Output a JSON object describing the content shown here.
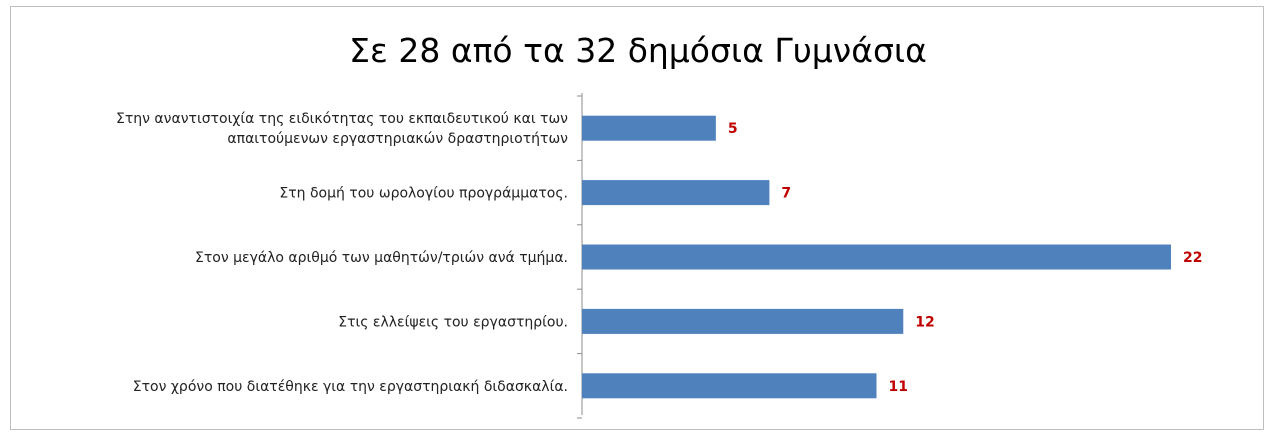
{
  "chart_data": {
    "type": "bar",
    "orientation": "horizontal",
    "title": "Σε 28 από τα 32 δημόσια Γυμνάσια",
    "categories": [
      [
        "Στην αναντιστοιχία της ειδικότητας του εκπαιδευτικού  και των",
        "απαιτούμενων εργαστηριακών δραστηριοτήτων"
      ],
      [
        "Στη δομή του ωρολογίου προγράμματος."
      ],
      [
        "Στον μεγάλο αριθμό των μαθητών/τριών ανά τμήμα."
      ],
      [
        "Στις ελλείψεις του εργαστηρίου."
      ],
      [
        "Στον χρόνο που διατέθηκε για την εργαστηριακή διδασκαλία."
      ]
    ],
    "values": [
      5,
      7,
      22,
      12,
      11
    ],
    "xlim": [
      0,
      22
    ],
    "grid": false,
    "bar_color": "#4f81bd",
    "label_color": "#c00000"
  }
}
